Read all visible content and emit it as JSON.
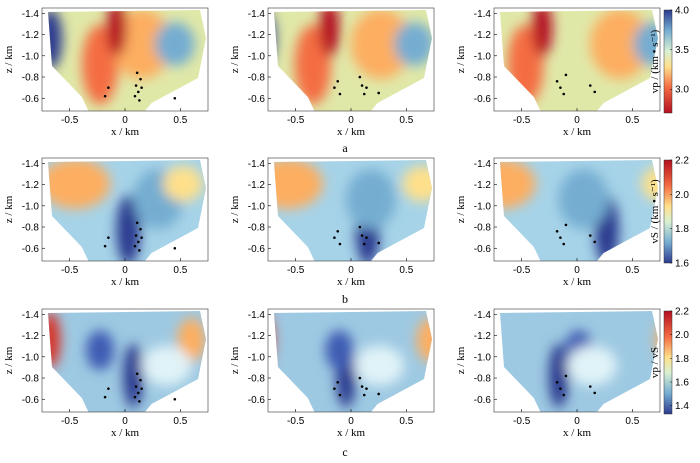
{
  "figure": {
    "row_labels": [
      "a",
      "b",
      "c"
    ]
  },
  "chart_data": [
    {
      "type": "heatmap",
      "row": 0,
      "col": 0,
      "xlabel": "x / km",
      "ylabel": "z / km",
      "xlim": [
        -0.75,
        0.75
      ],
      "ylim": [
        -1.45,
        -0.48
      ],
      "xticks": [
        "-0.5",
        "0",
        "0.5"
      ],
      "yticks": [
        "-1.4",
        "-1.2",
        "-1.0",
        "-0.8",
        "-0.6"
      ],
      "scale": "vp",
      "points": [
        [
          0.1,
          -0.72
        ],
        [
          0.12,
          -0.66
        ],
        [
          0.14,
          -0.78
        ],
        [
          0.09,
          -0.62
        ],
        [
          0.15,
          -0.7
        ],
        [
          0.11,
          -0.84
        ],
        [
          0.13,
          -0.58
        ],
        [
          -0.15,
          -0.7
        ],
        [
          -0.18,
          -0.62
        ],
        [
          0.45,
          -0.6
        ]
      ]
    },
    {
      "type": "heatmap",
      "row": 0,
      "col": 1,
      "xlabel": "x / km",
      "ylabel": "z / km",
      "xlim": [
        -0.75,
        0.75
      ],
      "ylim": [
        -1.45,
        -0.48
      ],
      "xticks": [
        "-0.5",
        "0",
        "0.5"
      ],
      "yticks": [
        "-1.4",
        "-1.2",
        "-1.0",
        "-0.8",
        "-0.6"
      ],
      "scale": "vp",
      "points": [
        [
          -0.15,
          -0.7
        ],
        [
          -0.1,
          -0.64
        ],
        [
          -0.12,
          -0.76
        ],
        [
          0.1,
          -0.72
        ],
        [
          0.12,
          -0.64
        ],
        [
          0.08,
          -0.8
        ],
        [
          0.14,
          -0.7
        ],
        [
          0.25,
          -0.65
        ]
      ]
    },
    {
      "type": "heatmap",
      "row": 0,
      "col": 2,
      "xlabel": "x / km",
      "ylabel": "z / km",
      "xlim": [
        -0.75,
        0.75
      ],
      "ylim": [
        -1.45,
        -0.48
      ],
      "xticks": [
        "-0.5",
        "0",
        "0.5"
      ],
      "yticks": [
        "-1.4",
        "-1.2",
        "-1.0",
        "-0.8",
        "-0.6"
      ],
      "scale": "vp",
      "points": [
        [
          -0.15,
          -0.7
        ],
        [
          -0.12,
          -0.64
        ],
        [
          -0.18,
          -0.76
        ],
        [
          -0.1,
          -0.82
        ],
        [
          0.12,
          -0.72
        ],
        [
          0.16,
          -0.66
        ]
      ]
    },
    {
      "type": "heatmap",
      "row": 1,
      "col": 0,
      "xlabel": "x / km",
      "ylabel": "z / km",
      "xlim": [
        -0.75,
        0.75
      ],
      "ylim": [
        -1.45,
        -0.48
      ],
      "xticks": [
        "-0.5",
        "0",
        "0.5"
      ],
      "yticks": [
        "-1.4",
        "-1.2",
        "-1.0",
        "-0.8",
        "-0.6"
      ],
      "scale": "vs",
      "points": [
        [
          0.1,
          -0.72
        ],
        [
          0.12,
          -0.66
        ],
        [
          0.14,
          -0.78
        ],
        [
          0.09,
          -0.62
        ],
        [
          0.15,
          -0.7
        ],
        [
          0.11,
          -0.84
        ],
        [
          0.13,
          -0.58
        ],
        [
          -0.15,
          -0.7
        ],
        [
          -0.18,
          -0.62
        ],
        [
          0.45,
          -0.6
        ]
      ]
    },
    {
      "type": "heatmap",
      "row": 1,
      "col": 1,
      "xlabel": "x / km",
      "ylabel": "z / km",
      "xlim": [
        -0.75,
        0.75
      ],
      "ylim": [
        -1.45,
        -0.48
      ],
      "xticks": [
        "-0.5",
        "0",
        "0.5"
      ],
      "yticks": [
        "-1.4",
        "-1.2",
        "-1.0",
        "-0.8",
        "-0.6"
      ],
      "scale": "vs",
      "points": [
        [
          -0.15,
          -0.7
        ],
        [
          -0.1,
          -0.64
        ],
        [
          -0.12,
          -0.76
        ],
        [
          0.1,
          -0.72
        ],
        [
          0.12,
          -0.64
        ],
        [
          0.08,
          -0.8
        ],
        [
          0.14,
          -0.7
        ],
        [
          0.25,
          -0.65
        ]
      ]
    },
    {
      "type": "heatmap",
      "row": 1,
      "col": 2,
      "xlabel": "x / km",
      "ylabel": "z / km",
      "xlim": [
        -0.75,
        0.75
      ],
      "ylim": [
        -1.45,
        -0.48
      ],
      "xticks": [
        "-0.5",
        "0",
        "0.5"
      ],
      "yticks": [
        "-1.4",
        "-1.2",
        "-1.0",
        "-0.8",
        "-0.6"
      ],
      "scale": "vs",
      "points": [
        [
          -0.15,
          -0.7
        ],
        [
          -0.12,
          -0.64
        ],
        [
          -0.18,
          -0.76
        ],
        [
          -0.1,
          -0.82
        ],
        [
          0.12,
          -0.72
        ],
        [
          0.16,
          -0.66
        ]
      ]
    },
    {
      "type": "heatmap",
      "row": 2,
      "col": 0,
      "xlabel": "x / km",
      "ylabel": "z / km",
      "xlim": [
        -0.75,
        0.75
      ],
      "ylim": [
        -1.45,
        -0.48
      ],
      "xticks": [
        "-0.5",
        "0",
        "0.5"
      ],
      "yticks": [
        "-1.4",
        "-1.2",
        "-1.0",
        "-0.8",
        "-0.6"
      ],
      "scale": "vpvs",
      "points": [
        [
          0.1,
          -0.72
        ],
        [
          0.12,
          -0.66
        ],
        [
          0.14,
          -0.78
        ],
        [
          0.09,
          -0.62
        ],
        [
          0.15,
          -0.7
        ],
        [
          0.11,
          -0.84
        ],
        [
          0.13,
          -0.58
        ],
        [
          -0.15,
          -0.7
        ],
        [
          -0.18,
          -0.62
        ],
        [
          0.45,
          -0.6
        ]
      ]
    },
    {
      "type": "heatmap",
      "row": 2,
      "col": 1,
      "xlabel": "x / km",
      "ylabel": "z / km",
      "xlim": [
        -0.75,
        0.75
      ],
      "ylim": [
        -1.45,
        -0.48
      ],
      "xticks": [
        "-0.5",
        "0",
        "0.5"
      ],
      "yticks": [
        "-1.4",
        "-1.2",
        "-1.0",
        "-0.8",
        "-0.6"
      ],
      "scale": "vpvs",
      "points": [
        [
          -0.15,
          -0.7
        ],
        [
          -0.1,
          -0.64
        ],
        [
          -0.12,
          -0.76
        ],
        [
          0.1,
          -0.72
        ],
        [
          0.12,
          -0.64
        ],
        [
          0.08,
          -0.8
        ],
        [
          0.14,
          -0.7
        ],
        [
          0.25,
          -0.65
        ]
      ]
    },
    {
      "type": "heatmap",
      "row": 2,
      "col": 2,
      "xlabel": "x / km",
      "ylabel": "z / km",
      "xlim": [
        -0.75,
        0.75
      ],
      "ylim": [
        -1.45,
        -0.48
      ],
      "xticks": [
        "-0.5",
        "0",
        "0.5"
      ],
      "yticks": [
        "-1.4",
        "-1.2",
        "-1.0",
        "-0.8",
        "-0.6"
      ],
      "scale": "vpvs",
      "points": [
        [
          -0.15,
          -0.7
        ],
        [
          -0.12,
          -0.64
        ],
        [
          -0.18,
          -0.76
        ],
        [
          -0.1,
          -0.82
        ],
        [
          0.12,
          -0.72
        ],
        [
          0.16,
          -0.66
        ]
      ]
    }
  ],
  "colorbars": [
    {
      "key": "vp",
      "label": "vp / (km • s⁻¹)",
      "ticks": [
        "4.0",
        "3.5",
        "3.0"
      ],
      "range": [
        2.7,
        4.0
      ],
      "reversed": true
    },
    {
      "key": "vs",
      "label": "vS / (km • s⁻¹)",
      "ticks": [
        "2.2",
        "2.0",
        "1.8",
        "1.6"
      ],
      "range": [
        1.6,
        2.2
      ],
      "reversed": false
    },
    {
      "key": "vpvs",
      "label": "vp / vS",
      "ticks": [
        "2.2",
        "2.0",
        "1.8",
        "1.6",
        "1.4"
      ],
      "range": [
        1.33,
        2.2
      ],
      "reversed": false
    }
  ]
}
